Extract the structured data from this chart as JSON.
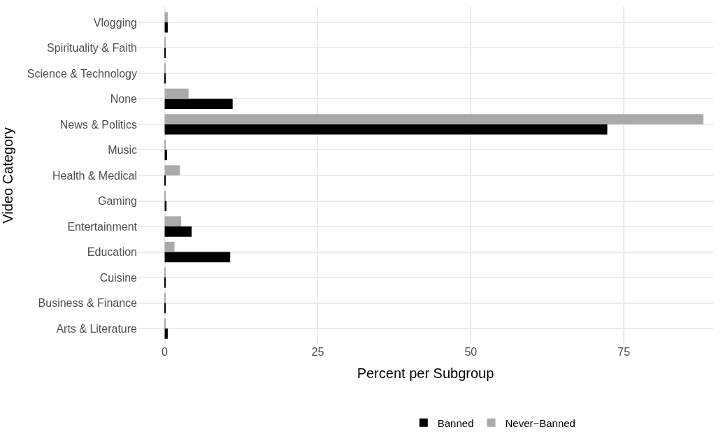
{
  "chart_data": {
    "type": "bar",
    "orientation": "horizontal",
    "xlabel": "Percent per Subgroup",
    "ylabel": "Video Category",
    "categories": [
      "Vlogging",
      "Spirituality & Faith",
      "Science & Technology",
      "None",
      "News & Politics",
      "Music",
      "Health & Medical",
      "Gaming",
      "Entertainment",
      "Education",
      "Cuisine",
      "Business & Finance",
      "Arts & Literature"
    ],
    "series": [
      {
        "name": "Banned",
        "color": "#000000",
        "values": [
          0.5,
          0.1,
          0.1,
          11.1,
          72.3,
          0.4,
          0.1,
          0.3,
          4.4,
          10.7,
          0.1,
          0.1,
          0.5
        ]
      },
      {
        "name": "Never−Banned",
        "color": "#aaaaaa",
        "values": [
          0.5,
          0.1,
          0.1,
          3.9,
          88.0,
          0.1,
          2.5,
          0.1,
          2.7,
          1.6,
          0.1,
          0.1,
          0.1
        ]
      }
    ],
    "xlim": [
      -4.4,
      89.6
    ],
    "xticks": [
      0,
      25,
      50,
      75
    ],
    "grid": true,
    "legend": "bottom"
  }
}
